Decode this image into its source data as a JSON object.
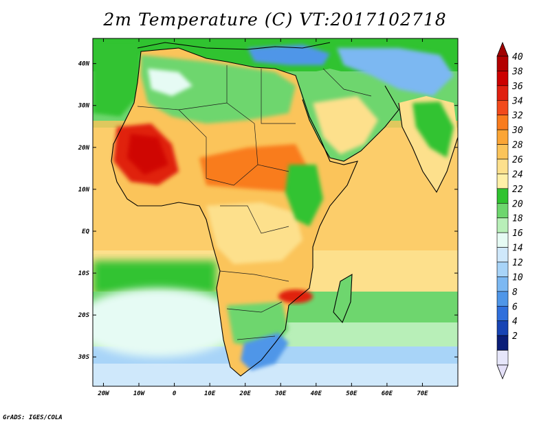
{
  "title": "2m Temperature (C) VT:2017102718",
  "credit": "GrADS: IGES/COLA",
  "map": {
    "region": "Africa, Middle East and western Indian Ocean",
    "projection": "latitude-longitude",
    "lon_range": [
      -23,
      80
    ],
    "lat_range": [
      -37,
      46
    ],
    "lat_labels": [
      {
        "value": 40,
        "text": "40N"
      },
      {
        "value": 30,
        "text": "30N"
      },
      {
        "value": 20,
        "text": "20N"
      },
      {
        "value": 10,
        "text": "10N"
      },
      {
        "value": 0,
        "text": "EQ"
      },
      {
        "value": -10,
        "text": "10S"
      },
      {
        "value": -20,
        "text": "20S"
      },
      {
        "value": -30,
        "text": "30S"
      }
    ],
    "lon_labels": [
      {
        "value": -20,
        "text": "20W"
      },
      {
        "value": -10,
        "text": "10W"
      },
      {
        "value": 0,
        "text": "0"
      },
      {
        "value": 10,
        "text": "10E"
      },
      {
        "value": 20,
        "text": "20E"
      },
      {
        "value": 30,
        "text": "30E"
      },
      {
        "value": 40,
        "text": "40E"
      },
      {
        "value": 50,
        "text": "50E"
      },
      {
        "value": 60,
        "text": "60E"
      },
      {
        "value": 70,
        "text": "70E"
      }
    ]
  },
  "colorbar": {
    "labels": [
      "40",
      "38",
      "36",
      "34",
      "32",
      "30",
      "28",
      "26",
      "24",
      "22",
      "20",
      "18",
      "16",
      "14",
      "12",
      "10",
      "8",
      "6",
      "4",
      "2"
    ],
    "colors": [
      "#b30000",
      "#cc0000",
      "#e02010",
      "#f24a1c",
      "#f97c1e",
      "#fba535",
      "#fbc45a",
      "#fde08c",
      "#fff0a8",
      "#30c330",
      "#6ed66e",
      "#b8efb8",
      "#e6fbf4",
      "#cfe8fb",
      "#a8d4f8",
      "#7cb8f2",
      "#4f96e8",
      "#2f6fdc",
      "#1744b4",
      "#0a1e78",
      "#e6e6fa"
    ],
    "top_triangle": "#a00000",
    "bottom_triangle": "#e4e0f8"
  },
  "colors": {
    "coast": "#000000",
    "border": "#1a1a1a"
  }
}
